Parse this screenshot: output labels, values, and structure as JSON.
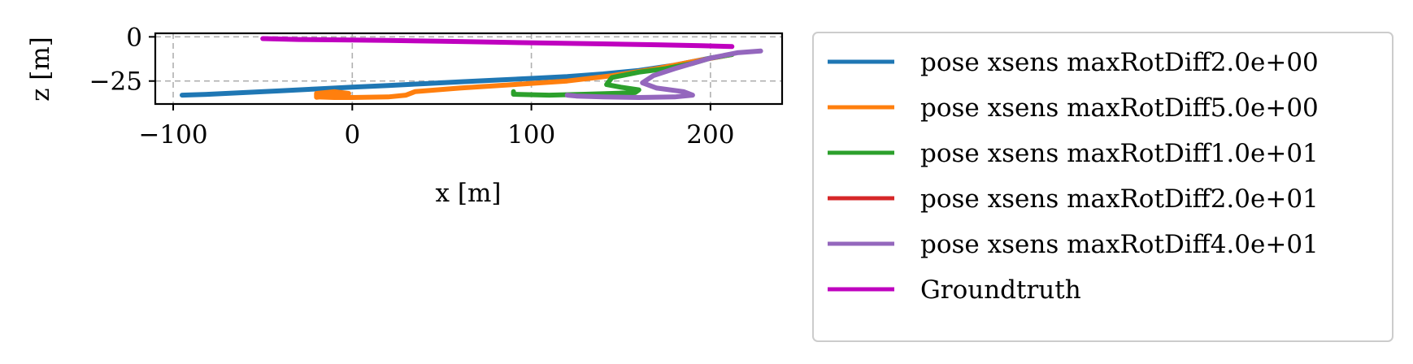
{
  "chart_data": {
    "type": "line",
    "title": "",
    "xlabel": "x [m]",
    "ylabel": "z [m]",
    "xlim": [
      -110,
      240
    ],
    "ylim": [
      -38,
      2
    ],
    "x_ticks": [
      -100,
      0,
      100,
      200
    ],
    "x_tick_labels": [
      "−100",
      "0",
      "100",
      "200"
    ],
    "y_ticks": [
      0,
      -25
    ],
    "y_tick_labels": [
      "0",
      "−25"
    ],
    "grid": true,
    "legend_position": "outside-right",
    "series": [
      {
        "name": "pose xsens maxRotDiff2.0e+00",
        "color": "#1f77b4",
        "x": [
          212,
          200,
          180,
          160,
          140,
          120,
          100,
          80,
          60,
          40,
          20,
          0,
          -20,
          -40,
          -60,
          -80,
          -95
        ],
        "y": [
          -10,
          -12,
          -16,
          -19,
          -21,
          -22.5,
          -23.5,
          -24.5,
          -25.5,
          -26.5,
          -27.5,
          -28.5,
          -29.5,
          -30.5,
          -31.5,
          -32.5,
          -33
        ]
      },
      {
        "name": "pose xsens maxRotDiff5.0e+00",
        "color": "#ff7f0e",
        "x": [
          212,
          190,
          170,
          145,
          120,
          90,
          60,
          35,
          30,
          20,
          0,
          -10,
          -20,
          -20,
          -10,
          -2,
          -8,
          -18,
          -20
        ],
        "y": [
          -10,
          -14,
          -18,
          -22,
          -25,
          -27,
          -29,
          -31,
          -33,
          -34,
          -34.3,
          -34.3,
          -34,
          -32,
          -31,
          -32,
          -33.5,
          -34,
          -34.2
        ]
      },
      {
        "name": "pose xsens maxRotDiff1.0e+01",
        "color": "#2ca02c",
        "x": [
          212,
          200,
          190,
          175,
          160,
          145,
          142,
          150,
          160,
          158,
          145,
          130,
          110,
          90,
          90
        ],
        "y": [
          -10,
          -12,
          -15,
          -18,
          -20,
          -23,
          -27,
          -28.5,
          -30,
          -31.5,
          -32,
          -32.5,
          -33,
          -32.5,
          -31
        ]
      },
      {
        "name": "pose xsens maxRotDiff2.0e+01",
        "color": "#d62728",
        "x": [],
        "y": []
      },
      {
        "name": "pose xsens maxRotDiff4.0e+01",
        "color": "#9467bd",
        "x": [
          228,
          215,
          200,
          190,
          180,
          168,
          162,
          170,
          185,
          190,
          180,
          160,
          140,
          125,
          120
        ],
        "y": [
          -8,
          -9,
          -12,
          -15,
          -18,
          -22,
          -26,
          -29,
          -31,
          -33,
          -34,
          -34.3,
          -34,
          -33.5,
          -33
        ]
      },
      {
        "name": "Groundtruth",
        "color": "#bf00bf",
        "x": [
          -50,
          -30,
          0,
          20,
          50,
          80,
          110,
          140,
          170,
          195,
          212
        ],
        "y": [
          -1,
          -1.5,
          -1.8,
          -2,
          -2.5,
          -3,
          -3.5,
          -4,
          -4.5,
          -5,
          -5.5
        ]
      }
    ]
  }
}
